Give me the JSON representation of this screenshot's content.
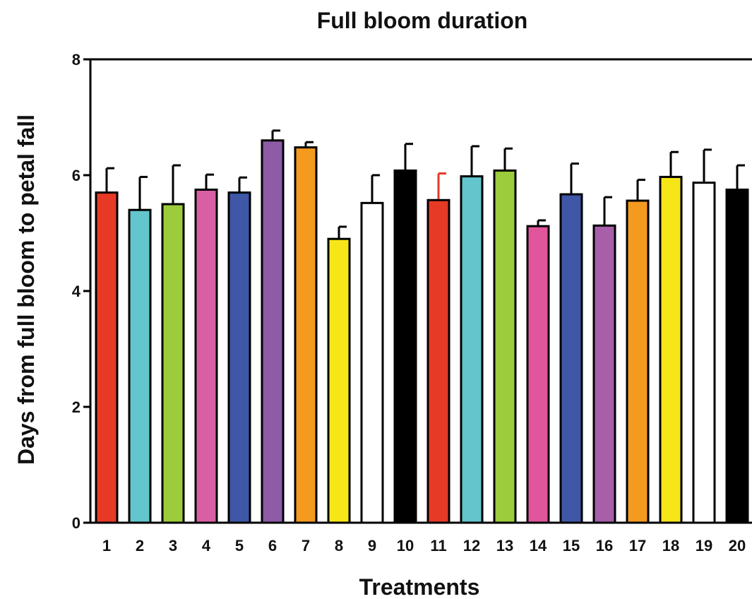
{
  "chart_data": {
    "type": "bar",
    "title": "Full bloom duration",
    "xlabel": "Treatments",
    "ylabel": "Days from full bloom to petal fall",
    "ylim": [
      0,
      8
    ],
    "yticks": [
      "0",
      "2",
      "4",
      "6",
      "8"
    ],
    "categories": [
      "1",
      "2",
      "3",
      "4",
      "5",
      "6",
      "7",
      "8",
      "9",
      "10",
      "11",
      "12",
      "13",
      "14",
      "15",
      "16",
      "17",
      "18",
      "19",
      "20"
    ],
    "values": [
      5.7,
      5.4,
      5.5,
      5.75,
      5.7,
      6.6,
      6.48,
      4.9,
      5.52,
      6.08,
      5.57,
      5.98,
      6.08,
      5.12,
      5.67,
      5.13,
      5.56,
      5.97,
      5.87,
      5.75
    ],
    "errors": [
      0.42,
      0.57,
      0.67,
      0.26,
      0.26,
      0.17,
      0.09,
      0.21,
      0.48,
      0.46,
      0.46,
      0.52,
      0.38,
      0.1,
      0.53,
      0.49,
      0.36,
      0.43,
      0.57,
      0.42
    ],
    "colors": [
      "#e63a26",
      "#62c6cc",
      "#9ccb3b",
      "#d95fa5",
      "#3f57a6",
      "#8e5ba7",
      "#f39a1f",
      "#f7e617",
      "#ffffff",
      "#000000",
      "#e63a26",
      "#62c6cc",
      "#9ccb3b",
      "#e0559c",
      "#3f57a6",
      "#a65fa8",
      "#f39a1f",
      "#f7e617",
      "#ffffff",
      "#000000"
    ],
    "error_bar_colors": [
      "#000000",
      "#000000",
      "#000000",
      "#000000",
      "#000000",
      "#000000",
      "#000000",
      "#000000",
      "#000000",
      "#000000",
      "#e63a26",
      "#000000",
      "#000000",
      "#000000",
      "#000000",
      "#000000",
      "#000000",
      "#000000",
      "#000000",
      "#000000"
    ],
    "grid": false,
    "legend": "none"
  }
}
